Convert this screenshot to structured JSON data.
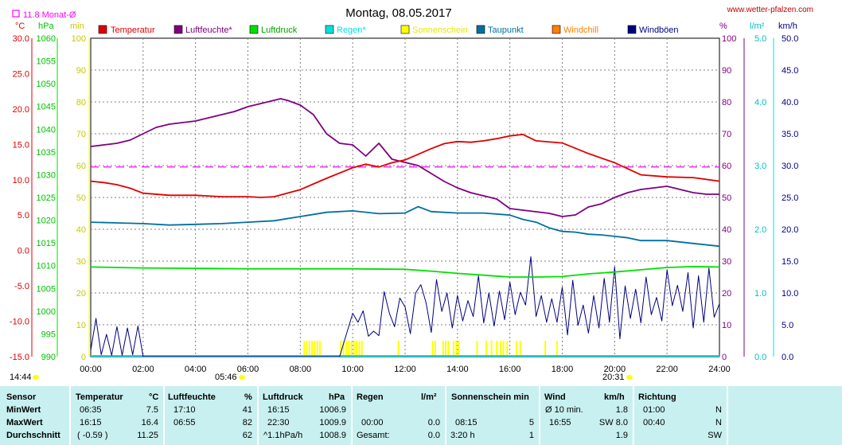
{
  "title": "Montag, 08.05.2017",
  "website": "www.wetter-pfalzen.com",
  "month_avg": "11.8 Monat-Ø",
  "axis_units": {
    "temp": "°C",
    "pressure": "hPa",
    "sunshine": "min",
    "percent": "%",
    "rain": "l/m²",
    "wind": "km/h"
  },
  "legend": [
    {
      "label": "Temperatur",
      "color": "#e00000"
    },
    {
      "label": "Luftfeuchte*",
      "color": "#800080"
    },
    {
      "label": "Luftdruck",
      "color": "#00e000"
    },
    {
      "label": "Regen*",
      "color": "#00e0e0"
    },
    {
      "label": "Sonnenschein",
      "color": "#ffff00"
    },
    {
      "label": "Taupunkt",
      "color": "#0070a0"
    },
    {
      "label": "Windchill",
      "color": "#ff8000"
    },
    {
      "label": "Windböen",
      "color": "#000080"
    }
  ],
  "times": {
    "sunrise": "05:46",
    "sunset": "20:31",
    "daylength": "14:44"
  },
  "chart_data": {
    "type": "line",
    "x_ticks": [
      "00:00",
      "02:00",
      "04:00",
      "06:00",
      "08:00",
      "10:00",
      "12:00",
      "14:00",
      "16:00",
      "18:00",
      "20:00",
      "22:00",
      "24:00"
    ],
    "axes": {
      "temp": {
        "label": "°C",
        "range": [
          -15,
          30
        ],
        "ticks": [
          "30.0",
          "25.0",
          "20.0",
          "15.0",
          "10.0",
          "5.0",
          "0.0",
          "-5.0",
          "-10.0",
          "-15.0"
        ]
      },
      "pressure": {
        "label": "hPa",
        "range": [
          990,
          1060
        ],
        "ticks": [
          "1060",
          "1055",
          "1050",
          "1045",
          "1040",
          "1035",
          "1030",
          "1025",
          "1020",
          "1015",
          "1010",
          "1005",
          "1000",
          "995",
          "990"
        ]
      },
      "sunshine": {
        "label": "min",
        "range": [
          0,
          100
        ],
        "ticks": [
          "100",
          "90",
          "80",
          "70",
          "60",
          "50",
          "40",
          "30",
          "20",
          "10",
          "0"
        ]
      },
      "percent": {
        "label": "%",
        "range": [
          0,
          100
        ],
        "ticks": [
          "100",
          "90",
          "80",
          "70",
          "60",
          "50",
          "40",
          "30",
          "20",
          "10",
          "0"
        ]
      },
      "rain": {
        "label": "l/m²",
        "range": [
          0,
          5
        ],
        "ticks": [
          "5.0",
          "4.0",
          "3.0",
          "2.0",
          "1.0",
          "0.0"
        ]
      },
      "wind": {
        "label": "km/h",
        "range": [
          0,
          50
        ],
        "ticks": [
          "50.0",
          "45.0",
          "40.0",
          "35.0",
          "30.0",
          "25.0",
          "20.0",
          "15.0",
          "10.0",
          "5.0",
          "0.0"
        ]
      }
    },
    "month_avg_temp": 11.8,
    "series": [
      {
        "name": "Temperatur",
        "color": "#e00000",
        "axis": "temp",
        "x": [
          0,
          0.5,
          1,
          1.5,
          2,
          3,
          4,
          5,
          5.5,
          6,
          6.5,
          7,
          8,
          9,
          10,
          10.5,
          11,
          11.5,
          12,
          12.5,
          13,
          13.5,
          14,
          14.5,
          15,
          15.5,
          16,
          16.5,
          17,
          18,
          19,
          20,
          21,
          22,
          23,
          24
        ],
        "values": [
          9.8,
          9.6,
          9.3,
          8.8,
          8.1,
          7.8,
          7.8,
          7.6,
          7.6,
          7.6,
          7.5,
          7.6,
          8.6,
          10.2,
          11.7,
          12.2,
          11.8,
          12.4,
          12.8,
          13.6,
          14.4,
          15.1,
          15.4,
          15.3,
          15.5,
          15.8,
          16.2,
          16.4,
          15.5,
          15.2,
          13.7,
          12.4,
          10.7,
          10.4,
          10.3,
          9.8
        ]
      },
      {
        "name": "Luftfeuchte*",
        "color": "#800080",
        "axis": "percent",
        "x": [
          0,
          0.5,
          1,
          1.5,
          2,
          2.5,
          3,
          3.5,
          4,
          4.5,
          5,
          5.5,
          6,
          6.5,
          7,
          7.25,
          7.5,
          8,
          8.5,
          9,
          9.5,
          10,
          10.5,
          11,
          11.5,
          12,
          12.5,
          13,
          13.5,
          14,
          14.5,
          15,
          15.5,
          16,
          16.5,
          17,
          17.5,
          18,
          18.5,
          19,
          19.5,
          20,
          20.5,
          21,
          21.5,
          22,
          22.5,
          23,
          23.5,
          24
        ],
        "values": [
          66,
          66.5,
          67,
          68,
          70,
          72,
          73,
          73.5,
          74,
          75,
          76,
          77,
          78.5,
          79.5,
          80.5,
          81,
          80.5,
          79,
          76,
          70,
          67,
          66.5,
          63,
          67,
          62,
          61,
          60,
          57.5,
          55,
          53,
          51.5,
          50.5,
          49.5,
          46.5,
          46,
          45.5,
          45,
          44,
          44.5,
          47,
          48,
          50,
          51.5,
          52.5,
          53,
          53.5,
          52.5,
          51.5,
          51,
          51
        ]
      },
      {
        "name": "Luftdruck",
        "color": "#00e000",
        "axis": "pressure",
        "x": [
          0,
          1,
          2,
          4,
          6,
          8,
          10,
          12,
          13,
          14,
          15,
          16,
          17,
          18,
          19,
          20,
          21,
          22,
          23,
          24
        ],
        "values": [
          1009.7,
          1009.6,
          1009.5,
          1009.4,
          1009.3,
          1009.3,
          1009.3,
          1009.2,
          1008.8,
          1008.3,
          1007.9,
          1007.5,
          1007.5,
          1007.6,
          1008.2,
          1008.6,
          1009.1,
          1009.6,
          1009.8,
          1009.7
        ]
      },
      {
        "name": "Taupunkt",
        "color": "#0070a0",
        "axis": "temp",
        "x": [
          0,
          1,
          2,
          3,
          4,
          5,
          6,
          7,
          8,
          9,
          10,
          11,
          12,
          12.5,
          13,
          14,
          15,
          16,
          16.5,
          17,
          17.5,
          18,
          18.5,
          19,
          19.5,
          20,
          20.5,
          21,
          22,
          23,
          24
        ],
        "values": [
          4.0,
          3.9,
          3.8,
          3.6,
          3.7,
          3.8,
          4.0,
          4.2,
          4.8,
          5.4,
          5.6,
          5.2,
          5.3,
          6.2,
          5.5,
          5.3,
          5.3,
          5.0,
          4.4,
          4.0,
          3.2,
          2.7,
          2.6,
          2.3,
          2.2,
          2.0,
          1.8,
          1.4,
          1.4,
          1.0,
          0.6
        ]
      },
      {
        "name": "Windböen",
        "color": "#000080",
        "axis": "wind",
        "x": [
          0,
          0.2,
          0.4,
          0.6,
          0.8,
          1,
          1.2,
          1.4,
          1.6,
          1.8,
          2,
          9.5,
          10,
          10.2,
          10.4,
          10.6,
          10.8,
          11,
          11.2,
          11.4,
          11.6,
          11.8,
          12,
          12.2,
          12.4,
          12.6,
          12.8,
          13,
          13.2,
          13.4,
          13.6,
          13.8,
          14,
          14.2,
          14.4,
          14.6,
          14.8,
          15,
          15.2,
          15.4,
          15.6,
          15.8,
          16,
          16.2,
          16.4,
          16.6,
          16.8,
          17,
          17.2,
          17.4,
          17.6,
          17.8,
          18,
          18.2,
          18.4,
          18.6,
          18.8,
          19,
          19.2,
          19.4,
          19.6,
          19.8,
          20,
          20.2,
          20.4,
          20.6,
          20.8,
          21,
          21.2,
          21.4,
          21.6,
          21.8,
          22,
          22.2,
          22.4,
          22.6,
          22.8,
          23,
          23.2,
          23.4,
          23.6,
          23.8,
          24
        ],
        "values": [
          1,
          6,
          0.3,
          3.5,
          0.2,
          4.7,
          0.2,
          4.5,
          0.3,
          4.8,
          0,
          0,
          6.8,
          5.4,
          7.2,
          3.2,
          4.0,
          3.3,
          10.2,
          6.8,
          4.7,
          9.2,
          7.8,
          3.6,
          10.0,
          11.3,
          8.5,
          3.8,
          12.1,
          7.1,
          10.0,
          4.5,
          9.6,
          5.6,
          8.8,
          6.3,
          12.7,
          5.3,
          10.0,
          4.8,
          10.3,
          5.8,
          11.7,
          6.6,
          10.1,
          8.1,
          15.7,
          6.3,
          9.6,
          5.4,
          9.1,
          5.4,
          10.9,
          3.4,
          12.0,
          4.9,
          8.1,
          3.7,
          9.6,
          4.5,
          12.3,
          5.4,
          14.1,
          2.8,
          11.1,
          6.0,
          10.6,
          5.3,
          12.5,
          6.6,
          9.3,
          5.6,
          13.6,
          8.0,
          11.2,
          7.1,
          13.2,
          4.5,
          12.7,
          5.4,
          13.9,
          6.2,
          8.3
        ]
      }
    ],
    "sunshine_hours": [
      8.15,
      8.25,
      8.35,
      8.45,
      8.55,
      8.65,
      8.75,
      9.55,
      9.65,
      9.75,
      9.85,
      9.95,
      10.05,
      10.15,
      10.25,
      10.35,
      11.75,
      13.05,
      13.15,
      13.45,
      13.55,
      13.65,
      13.85,
      13.95,
      14.05,
      14.75,
      15.1,
      15.3,
      15.5,
      15.65,
      15.75,
      15.9,
      16.25,
      16.4,
      17.35,
      17.8
    ],
    "sunshine_value": 5
  },
  "table": {
    "columns": [
      {
        "header": "Sensor",
        "unit": ""
      },
      {
        "header": "Temperatur",
        "unit": "°C"
      },
      {
        "header": "Luftfeuchte",
        "unit": "%"
      },
      {
        "header": "Luftdruck",
        "unit": "hPa"
      },
      {
        "header": "Regen",
        "unit": "l/m²"
      },
      {
        "header": "Sonnenschein min",
        "unit": ""
      },
      {
        "header": "Wind",
        "unit": "km/h"
      },
      {
        "header": "Richtung",
        "unit": ""
      }
    ],
    "rows": [
      {
        "label": "MinWert",
        "temp_time": "06:35",
        "temp_val": "7.5",
        "hum_time": "17:10",
        "hum_val": "41",
        "pres_time": "16:15",
        "pres_val": "1006.9",
        "rain_time": "",
        "rain_val": "",
        "sun_time": "",
        "sun_val": "",
        "wind_time": "Ø 10 min.",
        "wind_val": "1.8",
        "dir_time": "01:00",
        "dir_val": "N"
      },
      {
        "label": "MaxWert",
        "temp_time": "16:15",
        "temp_val": "16.4",
        "hum_time": "06:55",
        "hum_val": "82",
        "pres_time": "22:30",
        "pres_val": "1009.9",
        "rain_time": "00:00",
        "rain_val": "0.0",
        "sun_time": "08:15",
        "sun_val": "5",
        "wind_time": "16:55",
        "wind_val": "SW 8.0",
        "dir_time": "00:40",
        "dir_val": "N"
      },
      {
        "label": "Durchschnitt",
        "temp_time": "( -0.59 )",
        "temp_val": "11.25",
        "hum_time": "",
        "hum_val": "62",
        "pres_time": "^1.1hPa/h",
        "pres_val": "1008.9",
        "rain_time": "Gesamt:",
        "rain_val": "0.0",
        "sun_time": "3:20 h",
        "sun_val": "1",
        "wind_time": "",
        "wind_val": "1.9",
        "dir_time": "",
        "dir_val": "SW"
      }
    ]
  }
}
